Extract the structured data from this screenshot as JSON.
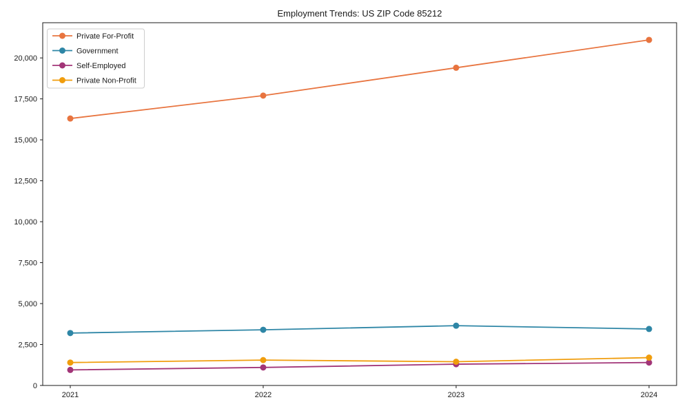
{
  "chart_data": {
    "type": "line",
    "title": "Employment Trends: US ZIP Code 85212",
    "x_categories": [
      "2021",
      "2022",
      "2023",
      "2024"
    ],
    "series": [
      {
        "name": "Private For-Profit",
        "color": "#e8743f",
        "values": [
          16300,
          17700,
          19400,
          21100
        ]
      },
      {
        "name": "Government",
        "color": "#2e86a6",
        "values": [
          3200,
          3400,
          3650,
          3450
        ]
      },
      {
        "name": "Self-Employed",
        "color": "#a23578",
        "values": [
          950,
          1100,
          1300,
          1400
        ]
      },
      {
        "name": "Private Non-Profit",
        "color": "#f09d0d",
        "values": [
          1400,
          1550,
          1450,
          1700
        ]
      }
    ],
    "yticks": [
      0,
      2500,
      5000,
      7500,
      10000,
      12500,
      15000,
      17500,
      20000
    ],
    "ylim": [
      0,
      22150
    ],
    "xlabel": "",
    "ylabel": "",
    "grid": false,
    "legend_position": "upper-left",
    "marker": "circle",
    "frame_color": "#1a1a1a",
    "legend_border_color": "#cccccc"
  }
}
